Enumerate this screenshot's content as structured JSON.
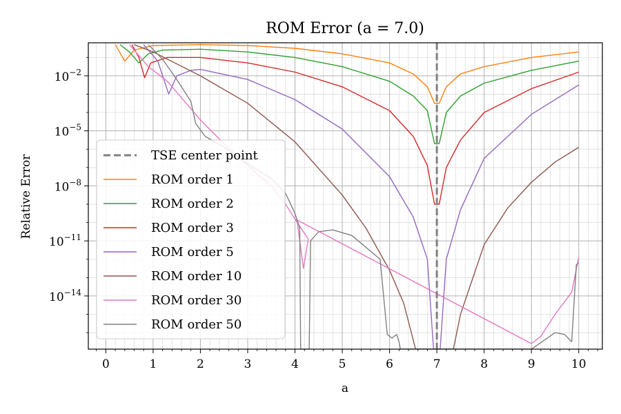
{
  "chart_data": {
    "type": "line",
    "title": "ROM Error (a = 7.0)",
    "xlabel": "a",
    "ylabel": "Relative Error",
    "xlim": [
      -0.37,
      10.5
    ],
    "ylim_log10": [
      -16.9,
      -0.2
    ],
    "yscale": "log",
    "grid": true,
    "minor_grid": true,
    "legend_position": "center-left",
    "x_ticks": [
      0,
      1,
      2,
      3,
      4,
      5,
      6,
      7,
      8,
      9,
      10
    ],
    "x_tick_labels": [
      "0",
      "1",
      "2",
      "3",
      "4",
      "5",
      "6",
      "7",
      "8",
      "9",
      "10"
    ],
    "y_ticks_log10": [
      -2,
      -5,
      -8,
      -11,
      -14
    ],
    "y_tick_labels": [
      "10^-2",
      "10^-5",
      "10^-8",
      "10^-11",
      "10^-14"
    ],
    "y_tick_base": "10",
    "y_tick_exponents": [
      "−2",
      "−5",
      "−8",
      "−11",
      "−14"
    ],
    "center_line": {
      "name": "TSE center point",
      "x": 7.0,
      "color": "#808080",
      "style": "dashed"
    },
    "series": [
      {
        "name": "ROM order 1",
        "color": "#ff7f0e",
        "points": [
          [
            0.2,
            -0.3
          ],
          [
            0.4,
            -1.2
          ],
          [
            0.6,
            -0.6
          ],
          [
            1.0,
            -0.35
          ],
          [
            2.0,
            -0.3
          ],
          [
            3.0,
            -0.35
          ],
          [
            4.0,
            -0.5
          ],
          [
            5.0,
            -0.8
          ],
          [
            6.0,
            -1.3
          ],
          [
            6.5,
            -1.9
          ],
          [
            6.8,
            -2.6
          ],
          [
            6.95,
            -3.5
          ],
          [
            7.05,
            -3.5
          ],
          [
            7.2,
            -2.6
          ],
          [
            7.5,
            -1.9
          ],
          [
            8.0,
            -1.5
          ],
          [
            9.0,
            -1.0
          ],
          [
            10.0,
            -0.7
          ]
        ]
      },
      {
        "name": "ROM order 2",
        "color": "#2ca02c",
        "points": [
          [
            0.3,
            -0.3
          ],
          [
            0.5,
            -0.7
          ],
          [
            0.7,
            -1.3
          ],
          [
            0.9,
            -0.8
          ],
          [
            1.2,
            -0.6
          ],
          [
            2.0,
            -0.55
          ],
          [
            3.0,
            -0.7
          ],
          [
            4.0,
            -1.0
          ],
          [
            5.0,
            -1.5
          ],
          [
            6.0,
            -2.3
          ],
          [
            6.5,
            -3.1
          ],
          [
            6.8,
            -3.9
          ],
          [
            6.95,
            -5.7
          ],
          [
            7.05,
            -5.7
          ],
          [
            7.2,
            -4.0
          ],
          [
            7.5,
            -3.1
          ],
          [
            8.0,
            -2.4
          ],
          [
            9.0,
            -1.7
          ],
          [
            10.0,
            -1.2
          ]
        ]
      },
      {
        "name": "ROM order 3",
        "color": "#d62728",
        "points": [
          [
            0.55,
            -0.3
          ],
          [
            0.7,
            -1.0
          ],
          [
            0.82,
            -2.1
          ],
          [
            0.95,
            -1.3
          ],
          [
            1.3,
            -1.0
          ],
          [
            2.0,
            -1.0
          ],
          [
            3.0,
            -1.3
          ],
          [
            4.0,
            -1.8
          ],
          [
            5.0,
            -2.6
          ],
          [
            6.0,
            -3.9
          ],
          [
            6.5,
            -5.3
          ],
          [
            6.8,
            -6.9
          ],
          [
            6.95,
            -9.0
          ],
          [
            7.05,
            -9.0
          ],
          [
            7.2,
            -7.0
          ],
          [
            7.5,
            -5.5
          ],
          [
            8.0,
            -4.0
          ],
          [
            9.0,
            -2.7
          ],
          [
            10.0,
            -1.8
          ]
        ]
      },
      {
        "name": "ROM order 5",
        "color": "#9467bd",
        "points": [
          [
            0.8,
            -0.3
          ],
          [
            1.1,
            -1.2
          ],
          [
            1.33,
            -3.0
          ],
          [
            1.5,
            -2.0
          ],
          [
            1.8,
            -1.7
          ],
          [
            2.0,
            -1.65
          ],
          [
            3.0,
            -2.2
          ],
          [
            4.0,
            -3.3
          ],
          [
            5.0,
            -4.9
          ],
          [
            6.0,
            -7.5
          ],
          [
            6.5,
            -9.7
          ],
          [
            6.8,
            -12.0
          ],
          [
            6.93,
            -16.9
          ],
          [
            7.07,
            -16.9
          ],
          [
            7.2,
            -12.0
          ],
          [
            7.5,
            -9.3
          ],
          [
            8.0,
            -6.5
          ],
          [
            9.0,
            -4.1
          ],
          [
            10.0,
            -2.5
          ]
        ]
      },
      {
        "name": "ROM order 10",
        "color": "#8c564b",
        "points": [
          [
            0.6,
            -0.3
          ],
          [
            1.0,
            -0.7
          ],
          [
            2.0,
            -2.0
          ],
          [
            3.0,
            -3.5
          ],
          [
            4.0,
            -5.6
          ],
          [
            5.0,
            -8.5
          ],
          [
            5.5,
            -10.3
          ],
          [
            6.0,
            -12.6
          ],
          [
            6.3,
            -14.4
          ],
          [
            6.55,
            -16.9
          ],
          [
            7.35,
            -16.9
          ],
          [
            7.5,
            -15.0
          ],
          [
            8.0,
            -11.2
          ],
          [
            8.5,
            -9.2
          ],
          [
            9.0,
            -7.8
          ],
          [
            9.5,
            -6.7
          ],
          [
            10.0,
            -5.9
          ]
        ]
      },
      {
        "name": "ROM order 30",
        "color": "#e377c2",
        "points": [
          [
            0.5,
            -0.3
          ],
          [
            0.9,
            -1.5
          ],
          [
            1.3,
            -2.3
          ],
          [
            1.7,
            -3.5
          ],
          [
            2.0,
            -4.4
          ],
          [
            2.5,
            -5.7
          ],
          [
            3.0,
            -6.9
          ],
          [
            3.5,
            -8.0
          ],
          [
            3.8,
            -9.0
          ],
          [
            4.05,
            -10.0
          ],
          [
            4.18,
            -12.5
          ],
          [
            4.28,
            -10.9
          ],
          [
            4.0,
            -9.8
          ],
          [
            9.0,
            -16.6
          ],
          [
            9.2,
            -16.2
          ],
          [
            9.5,
            -15.0
          ],
          [
            9.85,
            -13.8
          ],
          [
            10.0,
            -11.9
          ]
        ]
      },
      {
        "name": "ROM order 50",
        "color": "#808080",
        "points": [
          [
            0.9,
            -0.3
          ],
          [
            1.2,
            -1.1
          ],
          [
            1.5,
            -2.2
          ],
          [
            1.8,
            -3.4
          ],
          [
            1.9,
            -4.6
          ],
          [
            2.1,
            -5.3
          ],
          [
            2.5,
            -5.9
          ],
          [
            3.0,
            -6.8
          ],
          [
            3.5,
            -7.6
          ],
          [
            3.8,
            -8.4
          ],
          [
            4.0,
            -9.5
          ],
          [
            4.1,
            -10.3
          ],
          [
            4.12,
            -16.9
          ],
          [
            4.3,
            -16.9
          ],
          [
            4.33,
            -11.0
          ],
          [
            4.5,
            -10.5
          ],
          [
            4.8,
            -10.4
          ],
          [
            5.2,
            -10.7
          ],
          [
            5.8,
            -12.0
          ],
          [
            5.95,
            -16.1
          ],
          [
            6.05,
            -16.3
          ],
          [
            6.15,
            -16.1
          ],
          [
            6.2,
            -16.5
          ],
          [
            6.23,
            -16.9
          ],
          [
            9.0,
            -16.9
          ],
          [
            9.5,
            -16.0
          ],
          [
            9.7,
            -16.1
          ],
          [
            9.85,
            -16.5
          ],
          [
            9.95,
            -12.3
          ],
          [
            10.0,
            -12.2
          ]
        ]
      }
    ]
  }
}
